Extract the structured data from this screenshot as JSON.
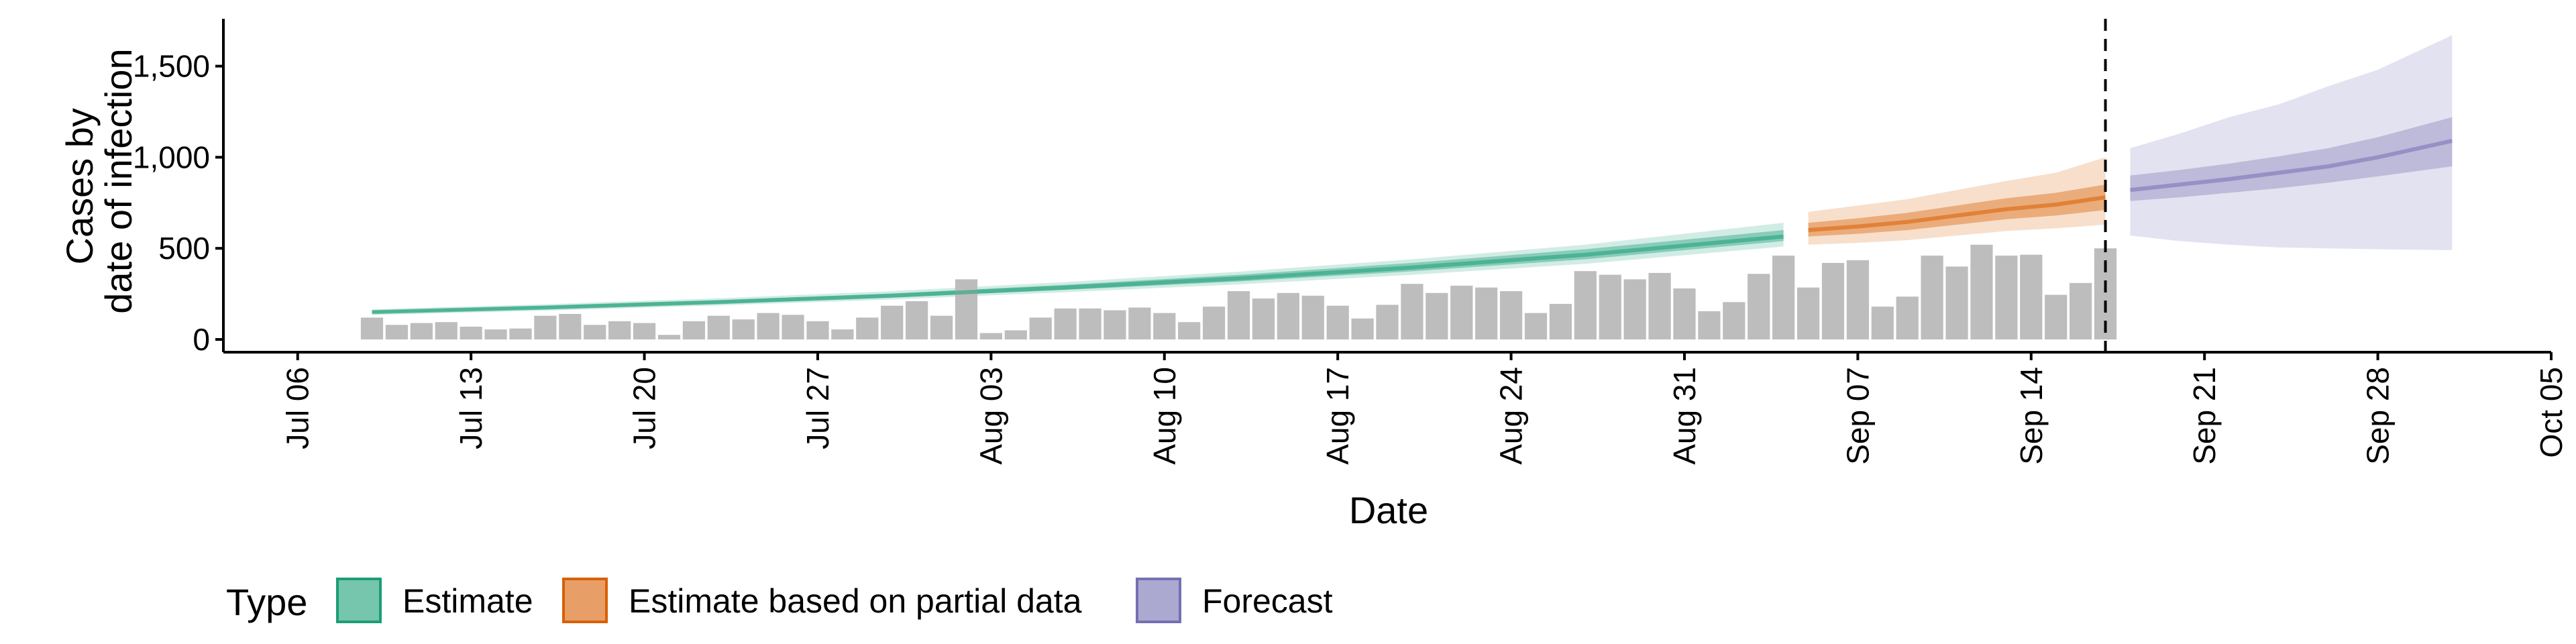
{
  "chart_data": {
    "type": "bar",
    "xlabel": "Date",
    "ylabel_lines": [
      "Cases by",
      "date of infection"
    ],
    "ylim": [
      -70,
      1760
    ],
    "x_range": [
      "2020-07-03",
      "2020-10-05"
    ],
    "x_ticks": [
      "Jul 06",
      "Jul 13",
      "Jul 20",
      "Jul 27",
      "Aug 03",
      "Aug 10",
      "Aug 17",
      "Aug 24",
      "Aug 31",
      "Sep 07",
      "Sep 14",
      "Sep 21",
      "Sep 28",
      "Oct 05"
    ],
    "x_tick_dates": [
      "2020-07-06",
      "2020-07-13",
      "2020-07-20",
      "2020-07-27",
      "2020-08-03",
      "2020-08-10",
      "2020-08-17",
      "2020-08-24",
      "2020-08-31",
      "2020-09-07",
      "2020-09-14",
      "2020-09-21",
      "2020-09-28",
      "2020-10-05"
    ],
    "y_ticks": [
      0,
      500,
      1000,
      1500
    ],
    "y_tick_labels": [
      "0",
      "500",
      "1,000",
      "1,500"
    ],
    "grid": false,
    "vline_date": "2020-09-17",
    "reported_cases": {
      "start": "2020-07-09",
      "values": [
        120,
        80,
        90,
        95,
        70,
        55,
        60,
        130,
        140,
        80,
        100,
        90,
        25,
        100,
        130,
        110,
        145,
        135,
        100,
        55,
        120,
        185,
        210,
        130,
        330,
        35,
        50,
        120,
        170,
        170,
        160,
        175,
        145,
        95,
        180,
        265,
        225,
        255,
        240,
        185,
        115,
        190,
        305,
        255,
        295,
        285,
        265,
        145,
        195,
        375,
        355,
        330,
        365,
        280,
        155,
        205,
        360,
        460,
        285,
        420,
        435,
        180,
        235,
        460,
        400,
        520,
        460,
        465,
        245,
        310,
        500
      ]
    },
    "legend": {
      "title": "Type",
      "position": "bottom",
      "items": [
        {
          "label": "Estimate",
          "color": "#1b9e77"
        },
        {
          "label": "Estimate based on partial data",
          "color": "#d95f02"
        },
        {
          "label": "Forecast",
          "color": "#7570b3"
        }
      ]
    },
    "bar_color": "#bdbdbd",
    "series": [
      {
        "name": "Estimate",
        "color": "#1b9e77",
        "start": "2020-07-09",
        "end": "2020-09-04",
        "dates": [
          "2020-07-09",
          "2020-07-16",
          "2020-07-23",
          "2020-07-30",
          "2020-08-06",
          "2020-08-13",
          "2020-08-20",
          "2020-08-27",
          "2020-09-04"
        ],
        "median": [
          150,
          175,
          205,
          240,
          285,
          335,
          395,
          465,
          565
        ],
        "inner": [
          [
            143,
            158
          ],
          [
            167,
            184
          ],
          [
            196,
            215
          ],
          [
            230,
            252
          ],
          [
            272,
            300
          ],
          [
            318,
            355
          ],
          [
            374,
            420
          ],
          [
            440,
            495
          ],
          [
            540,
            600
          ]
        ],
        "outer": [
          [
            135,
            165
          ],
          [
            158,
            193
          ],
          [
            187,
            226
          ],
          [
            219,
            265
          ],
          [
            259,
            315
          ],
          [
            302,
            372
          ],
          [
            355,
            440
          ],
          [
            415,
            520
          ],
          [
            510,
            640
          ]
        ]
      },
      {
        "name": "Estimate based on partial data",
        "color": "#d95f02",
        "start": "2020-09-05",
        "end": "2020-09-17",
        "dates": [
          "2020-09-05",
          "2020-09-07",
          "2020-09-09",
          "2020-09-11",
          "2020-09-13",
          "2020-09-15",
          "2020-09-17"
        ],
        "median": [
          600,
          620,
          645,
          680,
          715,
          740,
          780
        ],
        "inner": [
          [
            565,
            640
          ],
          [
            580,
            665
          ],
          [
            600,
            695
          ],
          [
            630,
            735
          ],
          [
            660,
            775
          ],
          [
            680,
            805
          ],
          [
            710,
            850
          ]
        ],
        "outer": [
          [
            520,
            700
          ],
          [
            530,
            735
          ],
          [
            545,
            770
          ],
          [
            570,
            820
          ],
          [
            595,
            870
          ],
          [
            610,
            915
          ],
          [
            630,
            1000
          ]
        ]
      },
      {
        "name": "Forecast",
        "color": "#7570b3",
        "start": "2020-09-18",
        "end": "2020-10-01",
        "dates": [
          "2020-09-18",
          "2020-09-20",
          "2020-09-22",
          "2020-09-24",
          "2020-09-26",
          "2020-09-28",
          "2020-10-01"
        ],
        "median": [
          820,
          850,
          880,
          915,
          950,
          1000,
          1090
        ],
        "inner": [
          [
            760,
            900
          ],
          [
            780,
            930
          ],
          [
            805,
            965
          ],
          [
            830,
            1005
          ],
          [
            860,
            1050
          ],
          [
            895,
            1110
          ],
          [
            950,
            1220
          ]
        ],
        "outer": [
          [
            570,
            1050
          ],
          [
            540,
            1130
          ],
          [
            520,
            1220
          ],
          [
            505,
            1290
          ],
          [
            500,
            1390
          ],
          [
            495,
            1480
          ],
          [
            490,
            1670
          ]
        ]
      }
    ]
  }
}
